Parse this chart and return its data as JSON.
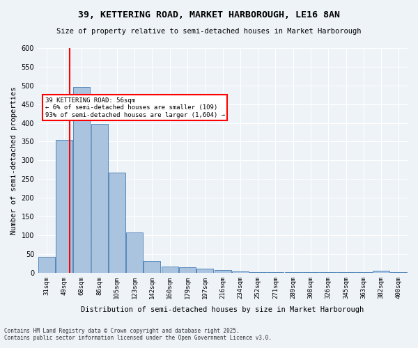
{
  "title": "39, KETTERING ROAD, MARKET HARBOROUGH, LE16 8AN",
  "subtitle": "Size of property relative to semi-detached houses in Market Harborough",
  "xlabel": "Distribution of semi-detached houses by size in Market Harborough",
  "ylabel": "Number of semi-detached properties",
  "categories": [
    "31sqm",
    "49sqm",
    "68sqm",
    "86sqm",
    "105sqm",
    "123sqm",
    "142sqm",
    "160sqm",
    "179sqm",
    "197sqm",
    "216sqm",
    "234sqm",
    "252sqm",
    "271sqm",
    "289sqm",
    "308sqm",
    "326sqm",
    "345sqm",
    "363sqm",
    "382sqm",
    "400sqm"
  ],
  "values": [
    42,
    355,
    495,
    398,
    268,
    107,
    32,
    17,
    14,
    11,
    7,
    4,
    2,
    2,
    2,
    1,
    1,
    1,
    1,
    5,
    2
  ],
  "bar_color": "#aac4e0",
  "bar_edge_color": "#5588bb",
  "property_line_x": 1.3,
  "annotation_title": "39 KETTERING ROAD: 56sqm",
  "annotation_line1": "← 6% of semi-detached houses are smaller (109)",
  "annotation_line2": "93% of semi-detached houses are larger (1,604) →",
  "ylim": [
    0,
    600
  ],
  "yticks": [
    0,
    50,
    100,
    150,
    200,
    250,
    300,
    350,
    400,
    450,
    500,
    550,
    600
  ],
  "footer_line1": "Contains HM Land Registry data © Crown copyright and database right 2025.",
  "footer_line2": "Contains public sector information licensed under the Open Government Licence v3.0.",
  "bg_color": "#eef3f8",
  "plot_bg_color": "#eef3f8"
}
